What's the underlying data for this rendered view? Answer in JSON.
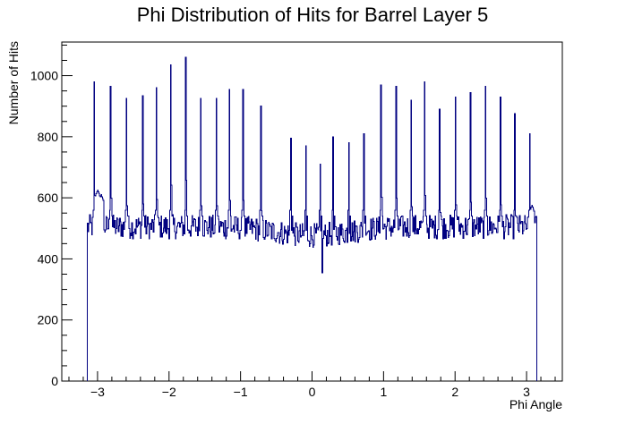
{
  "chart_data": {
    "type": "line",
    "style": "step-histogram",
    "title": "Phi Distribution of Hits for Barrel Layer 5",
    "xlabel": "Phi Angle",
    "ylabel": "Number of Hits",
    "xlim": [
      -3.5,
      3.5
    ],
    "ylim": [
      0,
      1110
    ],
    "x_ticks": [
      -3,
      -2,
      -1,
      0,
      1,
      2,
      3
    ],
    "x_tick_labels": [
      "−3",
      "−2",
      "−1",
      "0",
      "1",
      "2",
      "3"
    ],
    "y_ticks": [
      0,
      200,
      400,
      600,
      800,
      1000
    ],
    "y_tick_labels": [
      "0",
      "200",
      "400",
      "600",
      "800",
      "1000"
    ],
    "grid": false,
    "legend": "none",
    "line_color": "#000080",
    "hist_range": [
      -3.1416,
      3.1416
    ],
    "n_bins": 628,
    "baseline": 505,
    "peaks": [
      {
        "x": -3.05,
        "y": 980
      },
      {
        "x": -2.82,
        "y": 965
      },
      {
        "x": -2.6,
        "y": 925
      },
      {
        "x": -2.37,
        "y": 935
      },
      {
        "x": -2.18,
        "y": 960
      },
      {
        "x": -1.98,
        "y": 1035
      },
      {
        "x": -1.77,
        "y": 1060
      },
      {
        "x": -1.56,
        "y": 925
      },
      {
        "x": -1.34,
        "y": 925
      },
      {
        "x": -1.16,
        "y": 955
      },
      {
        "x": -0.97,
        "y": 955
      },
      {
        "x": -0.72,
        "y": 900
      },
      {
        "x": -0.3,
        "y": 795
      },
      {
        "x": -0.09,
        "y": 770
      },
      {
        "x": 0.12,
        "y": 710
      },
      {
        "x": 0.3,
        "y": 800
      },
      {
        "x": 0.52,
        "y": 780
      },
      {
        "x": 0.73,
        "y": 810
      },
      {
        "x": 0.97,
        "y": 970
      },
      {
        "x": 1.18,
        "y": 965
      },
      {
        "x": 1.39,
        "y": 920
      },
      {
        "x": 1.58,
        "y": 980
      },
      {
        "x": 1.79,
        "y": 890
      },
      {
        "x": 2.01,
        "y": 930
      },
      {
        "x": 2.22,
        "y": 945
      },
      {
        "x": 2.43,
        "y": 965
      },
      {
        "x": 2.64,
        "y": 930
      },
      {
        "x": 2.84,
        "y": 875
      },
      {
        "x": 3.05,
        "y": 810
      }
    ],
    "shoulders": [
      {
        "x": -3.0,
        "y": 625
      },
      {
        "x": -2.95,
        "y": 610
      },
      {
        "x": 3.08,
        "y": 575
      }
    ],
    "dips": [
      {
        "x": 0.15,
        "y": 355
      }
    ]
  }
}
